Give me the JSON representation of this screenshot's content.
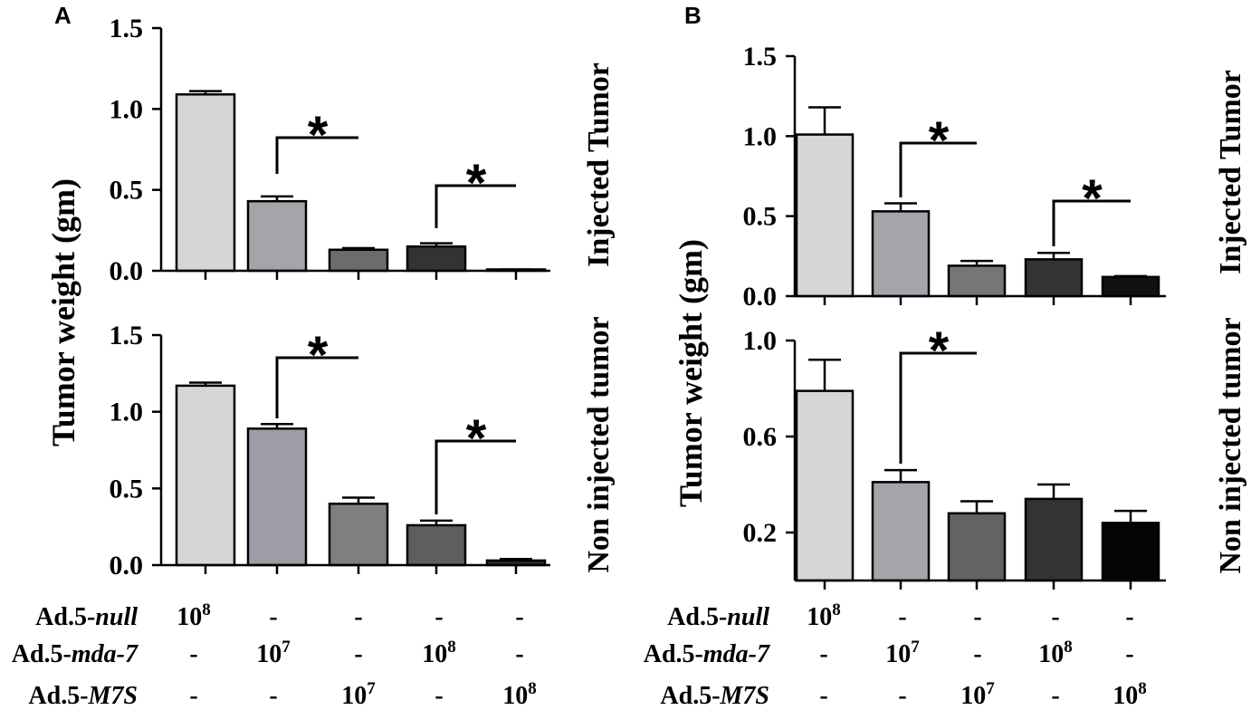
{
  "panels": [
    {
      "letter": "A",
      "ylabel": "Tumor weight (gm)"
    },
    {
      "letter": "B",
      "ylabel": "Tumor weight (gm)"
    }
  ],
  "chart_data": [
    {
      "type": "bar",
      "title": "Injected Tumor",
      "ylim": [
        0,
        1.5
      ],
      "yticks": [
        0,
        0.5,
        1.0,
        1.5
      ],
      "ytick_labels": [
        "0.0",
        "0.5",
        "1.0",
        "1.5"
      ],
      "values": [
        1.09,
        0.43,
        0.13,
        0.15,
        0.005
      ],
      "error_upper": [
        1.11,
        0.46,
        0.14,
        0.17,
        0.008
      ],
      "bar_colors": [
        "#d6d6d6",
        "#a4a4aa",
        "#6c6c6c",
        "#333333",
        "#1a1a1a"
      ],
      "significance": [
        {
          "between": [
            1,
            2
          ],
          "label": "*"
        },
        {
          "between": [
            3,
            4
          ],
          "label": "*"
        }
      ]
    },
    {
      "type": "bar",
      "title": "Non injected tumor",
      "ylim": [
        0,
        1.5
      ],
      "yticks": [
        0,
        0.5,
        1.0,
        1.5
      ],
      "ytick_labels": [
        "0.0",
        "0.5",
        "1.0",
        "1.5"
      ],
      "values": [
        1.17,
        0.89,
        0.4,
        0.26,
        0.03
      ],
      "error_upper": [
        1.19,
        0.92,
        0.44,
        0.29,
        0.04
      ],
      "bar_colors": [
        "#d6d6d6",
        "#9d9da6",
        "#7f7f7f",
        "#5e5e5e",
        "#2b2b2b"
      ],
      "significance": [
        {
          "between": [
            1,
            2
          ],
          "label": "*"
        },
        {
          "between": [
            3,
            4
          ],
          "label": "*"
        }
      ]
    },
    {
      "type": "bar",
      "title": "Injected Tumor",
      "ylim": [
        0,
        1.5
      ],
      "yticks": [
        0,
        0.5,
        1.0,
        1.5
      ],
      "ytick_labels": [
        "0.0",
        "0.5",
        "1.0",
        "1.5"
      ],
      "values": [
        1.01,
        0.53,
        0.19,
        0.23,
        0.12
      ],
      "error_upper": [
        1.18,
        0.58,
        0.22,
        0.27,
        0.125
      ],
      "bar_colors": [
        "#d6d6d6",
        "#a4a4aa",
        "#767676",
        "#333333",
        "#111111"
      ],
      "significance": [
        {
          "between": [
            1,
            2
          ],
          "label": "*"
        },
        {
          "between": [
            3,
            4
          ],
          "label": "*"
        }
      ]
    },
    {
      "type": "bar",
      "title": "Non injected tumor",
      "ylim": [
        0,
        1.0
      ],
      "yticks": [
        0.2,
        0.6,
        1.0
      ],
      "ytick_labels": [
        "0.2",
        "0.6",
        "1.0"
      ],
      "values": [
        0.79,
        0.41,
        0.28,
        0.34,
        0.24
      ],
      "error_upper": [
        0.92,
        0.46,
        0.33,
        0.4,
        0.29
      ],
      "bar_colors": [
        "#d6d6d6",
        "#a4a4aa",
        "#636363",
        "#333333",
        "#050505"
      ],
      "significance": [
        {
          "between": [
            1,
            2
          ],
          "label": "*"
        }
      ]
    }
  ],
  "treatment_table": {
    "rows": [
      {
        "prefix": "Ad.5-",
        "name": "null",
        "cells": [
          {
            "base": "10",
            "exp": "8"
          },
          {
            "text": "-"
          },
          {
            "text": "-"
          },
          {
            "text": "-"
          },
          {
            "text": "-"
          }
        ]
      },
      {
        "prefix": "Ad.5-",
        "name": "mda-7",
        "cells": [
          {
            "text": "-"
          },
          {
            "base": "10",
            "exp": "7"
          },
          {
            "text": "-"
          },
          {
            "base": "10",
            "exp": "8"
          },
          {
            "text": "-"
          }
        ]
      },
      {
        "prefix": "Ad.5-",
        "name": "M7S",
        "cells": [
          {
            "text": "-"
          },
          {
            "text": "-"
          },
          {
            "base": "10",
            "exp": "7"
          },
          {
            "text": "-"
          },
          {
            "base": "10",
            "exp": "8"
          }
        ]
      }
    ]
  }
}
